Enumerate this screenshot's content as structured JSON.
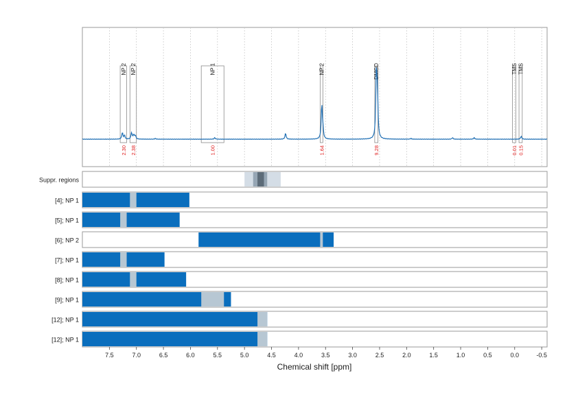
{
  "chart_data": {
    "type": "nmr-spectrum",
    "xlabel": "Chemical shift [ppm]",
    "xlim": [
      8.0,
      -0.6
    ],
    "x_ticks": [
      "7.5",
      "7.0",
      "6.5",
      "6.0",
      "5.5",
      "5.0",
      "4.5",
      "4.0",
      "3.5",
      "3.0",
      "2.5",
      "2.0",
      "1.5",
      "1.0",
      "0.5",
      "0.0",
      "-0.5"
    ],
    "x_tick_values": [
      7.5,
      7.0,
      6.5,
      6.0,
      5.5,
      5.0,
      4.5,
      4.0,
      3.5,
      3.0,
      2.5,
      2.0,
      1.5,
      1.0,
      0.5,
      0.0,
      -0.5
    ],
    "colors": {
      "spectrum": "#1f6fb4",
      "bar": "#0a6ebd",
      "overlap": "#b7c7d3",
      "integral": "#e02020",
      "suppr_light": "#d4dde6",
      "suppr_mid": "#96a6b4",
      "suppr_dark": "#5c6b78"
    },
    "spectrum_peaks": [
      {
        "ppm": 7.26,
        "height": 0.09
      },
      {
        "ppm": 7.22,
        "height": 0.05
      },
      {
        "ppm": 7.09,
        "height": 0.09
      },
      {
        "ppm": 7.05,
        "height": 0.06
      },
      {
        "ppm": 7.02,
        "height": 0.05
      },
      {
        "ppm": 6.65,
        "height": 0.01
      },
      {
        "ppm": 5.55,
        "height": 0.02
      },
      {
        "ppm": 4.24,
        "height": 0.08
      },
      {
        "ppm": 3.57,
        "height": 0.46
      },
      {
        "ppm": 3.55,
        "height": 0.12
      },
      {
        "ppm": 2.56,
        "height": 0.9
      },
      {
        "ppm": 2.54,
        "height": 0.55
      },
      {
        "ppm": 1.92,
        "height": 0.01
      },
      {
        "ppm": 1.15,
        "height": 0.02
      },
      {
        "ppm": 0.75,
        "height": 0.02
      },
      {
        "ppm": -0.12,
        "height": 0.04
      }
    ],
    "annotation_boxes": [
      {
        "label": "NP 2",
        "ppm_left": 7.3,
        "ppm_right": 7.18,
        "integral": "2.30"
      },
      {
        "label": "NP 2",
        "ppm_left": 7.12,
        "ppm_right": 7.0,
        "integral": "2.38"
      },
      {
        "label": "NP 1",
        "ppm_left": 5.8,
        "ppm_right": 5.38,
        "integral": "1.00"
      },
      {
        "label": "NP 2",
        "ppm_left": 3.6,
        "ppm_right": 3.55,
        "integral": "1.64"
      },
      {
        "label": "DMSO",
        "ppm_left": 2.59,
        "ppm_right": 2.53,
        "integral": "9.28"
      },
      {
        "label": "TMS",
        "ppm_left": 0.04,
        "ppm_right": -0.02,
        "integral": "0.01"
      },
      {
        "label": "TMS",
        "ppm_left": -0.08,
        "ppm_right": -0.14,
        "integral": "0.15"
      }
    ],
    "suppr_regions": {
      "label": "Suppr. regions",
      "layers": [
        {
          "from": 5.0,
          "to": 4.33,
          "shade": "light"
        },
        {
          "from": 4.84,
          "to": 4.58,
          "shade": "mid"
        },
        {
          "from": 4.76,
          "to": 4.64,
          "shade": "dark"
        }
      ]
    },
    "rows": [
      {
        "label": "[4]; NP 1",
        "bar": [
          8.0,
          6.02
        ],
        "overlaps": [
          [
            7.12,
            7.0
          ]
        ]
      },
      {
        "label": "[5]; NP 1",
        "bar": [
          8.0,
          6.2
        ],
        "overlaps": [
          [
            7.3,
            7.18
          ]
        ]
      },
      {
        "label": "[6]; NP 2",
        "bar": [
          5.85,
          3.35
        ],
        "overlaps": [
          [
            3.6,
            3.55
          ]
        ]
      },
      {
        "label": "[7]; NP 1",
        "bar": [
          8.0,
          6.48
        ],
        "overlaps": [
          [
            7.3,
            7.18
          ]
        ]
      },
      {
        "label": "[8]; NP 1",
        "bar": [
          8.0,
          6.08
        ],
        "overlaps": [
          [
            7.12,
            7.0
          ]
        ]
      },
      {
        "label": "[9]; NP 1",
        "bar": [
          8.0,
          5.25
        ],
        "overlaps": [
          [
            5.8,
            5.38
          ]
        ]
      },
      {
        "label": "[12]; NP 1",
        "bar": [
          8.0,
          4.58
        ],
        "overlaps": [
          [
            4.76,
            4.58
          ]
        ]
      },
      {
        "label": "[12]; NP 1",
        "bar": [
          8.0,
          4.58
        ],
        "overlaps": [
          [
            4.76,
            4.58
          ]
        ]
      }
    ]
  }
}
